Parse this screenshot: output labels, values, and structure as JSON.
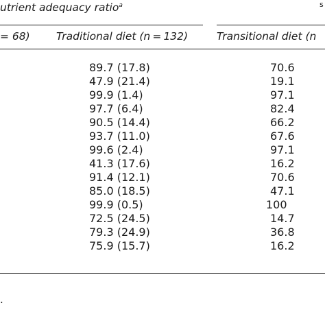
{
  "header": {
    "group_title": "utrient adequacy ratio",
    "group_title_sup": "a",
    "corner_fragment": "s",
    "left_col_fragment": "= 68)",
    "col_traditional": "Traditional diet (n = 132)",
    "col_transitional": "Transitional diet (n"
  },
  "rows": [
    {
      "traditional": "89.7 (17.8)",
      "transitional": "70.6"
    },
    {
      "traditional": "47.9 (21.4)",
      "transitional": "19.1"
    },
    {
      "traditional": "99.9 (1.4)",
      "transitional": "97.1"
    },
    {
      "traditional": "97.7 (6.4)",
      "transitional": "82.4"
    },
    {
      "traditional": "90.5 (14.4)",
      "transitional": "66.2"
    },
    {
      "traditional": "93.7 (11.0)",
      "transitional": "67.6"
    },
    {
      "traditional": "99.6 (2.4)",
      "transitional": "97.1"
    },
    {
      "traditional": "41.3 (17.6)",
      "transitional": "16.2"
    },
    {
      "traditional": "91.4 (12.1)",
      "transitional": "70.6"
    },
    {
      "traditional": "85.0 (18.5)",
      "transitional": "47.1"
    },
    {
      "traditional": "99.9 (0.5)",
      "transitional": "100"
    },
    {
      "traditional": "72.5 (24.5)",
      "transitional": "14.7"
    },
    {
      "traditional": "79.3 (24.9)",
      "transitional": "36.8"
    },
    {
      "traditional": "75.9 (15.7)",
      "transitional": "16.2"
    }
  ],
  "footer": {
    "note_fragment": "."
  }
}
